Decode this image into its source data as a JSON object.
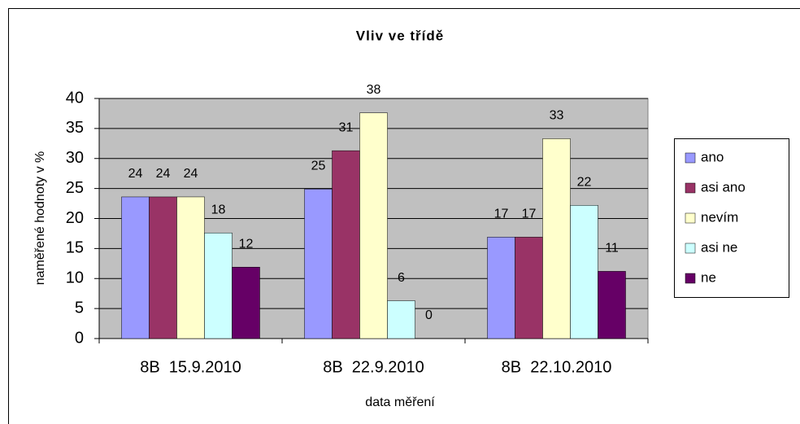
{
  "chart_data": {
    "type": "bar",
    "title": "Vliv ve třídě",
    "x_label": "data měření",
    "y_label": "naměřené hodnoty v %",
    "categories": [
      "8B  15.9.2010",
      "8B  22.9.2010",
      "8B  22.10.2010"
    ],
    "series": [
      {
        "name": "ano",
        "color": "#9999ff",
        "values": [
          23.6,
          24.9,
          16.9
        ],
        "value_labels": [
          "24",
          "25",
          "17"
        ]
      },
      {
        "name": "asi ano",
        "color": "#993366",
        "values": [
          23.6,
          31.3,
          16.9
        ],
        "value_labels": [
          "24",
          "31",
          "17"
        ]
      },
      {
        "name": "nevím",
        "color": "#ffffcc",
        "values": [
          23.6,
          37.6,
          33.3
        ],
        "value_labels": [
          "24",
          "38",
          "33"
        ]
      },
      {
        "name": "asi ne",
        "color": "#ccffff",
        "values": [
          17.6,
          6.3,
          22.2
        ],
        "value_labels": [
          "18",
          "6",
          "22"
        ]
      },
      {
        "name": "ne",
        "color": "#660066",
        "values": [
          11.9,
          0,
          11.2
        ],
        "value_labels": [
          "12",
          "0",
          "11"
        ]
      }
    ],
    "ylim": [
      0,
      40
    ],
    "yticks": [
      0,
      5,
      10,
      15,
      20,
      25,
      30,
      35,
      40
    ],
    "grid": true,
    "legend": "right"
  }
}
